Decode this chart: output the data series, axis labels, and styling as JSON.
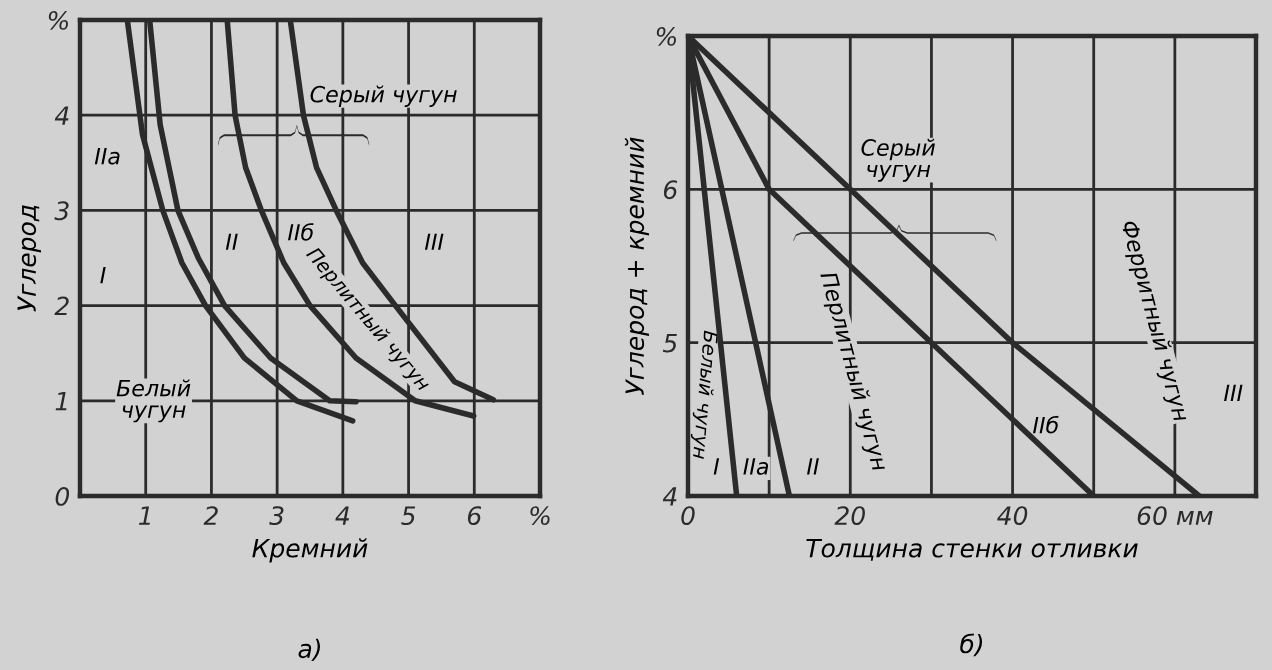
{
  "chart_data": [
    {
      "type": "line",
      "xlabel": "Кремний",
      "ylabel": "Углерод",
      "xlim": [
        0,
        7
      ],
      "ylim": [
        0,
        5
      ],
      "xticks": [
        1,
        2,
        3,
        4,
        5,
        6,
        {
          "value": 7,
          "label": "%"
        }
      ],
      "yticks": [
        0,
        1,
        2,
        3,
        4,
        {
          "value": 5,
          "label": "%"
        }
      ],
      "grid": true,
      "marker": "none",
      "line_style": "solid",
      "series": [
        {
          "color": "#2b2b2b",
          "x": [
            0.72,
            0.95,
            1.26,
            1.55,
            1.91,
            2.5,
            3.3,
            4.15
          ],
          "values": [
            5,
            3.8,
            3,
            2.45,
            2,
            1.45,
            1,
            0.79
          ]
        },
        {
          "color": "#2b2b2b",
          "x": [
            1.06,
            1.22,
            1.49,
            1.8,
            2.2,
            2.9,
            3.8,
            4.2
          ],
          "values": [
            5,
            3.9,
            3,
            2.5,
            2,
            1.45,
            1,
            0.99
          ]
        },
        {
          "color": "#2b2b2b",
          "x": [
            2.24,
            2.36,
            2.52,
            2.76,
            3.1,
            3.5,
            4.2,
            5.1,
            5.99
          ],
          "values": [
            5,
            4,
            3.45,
            3,
            2.45,
            2,
            1.45,
            1,
            0.84
          ]
        },
        {
          "color": "#2b2b2b",
          "x": [
            3.2,
            3.4,
            3.6,
            3.9,
            4.3,
            4.8,
            5.7,
            6.29
          ],
          "values": [
            5,
            4,
            3.45,
            3,
            2.45,
            2,
            1.2,
            1.01
          ]
        }
      ],
      "annotations": [
        "Серый чугун",
        "IIа",
        "I",
        "II",
        "IIб",
        "III",
        "Перлитный чугун",
        "Белый\nчугун",
        "а)"
      ]
    },
    {
      "type": "line",
      "xlabel": "Толщина стенки отливки",
      "ylabel": "Углерод + кремний",
      "xlim": [
        0,
        70
      ],
      "ylim": [
        4,
        7
      ],
      "xticks": [
        0,
        {
          "value": 10,
          "label": null
        },
        20,
        {
          "value": 30,
          "label": null
        },
        40,
        {
          "value": 50,
          "label": null
        },
        {
          "value": 60,
          "label": "60 мм"
        }
      ],
      "yticks": [
        4,
        5,
        6,
        {
          "value": 7,
          "label": "%"
        }
      ],
      "grid": true,
      "marker": "none",
      "line_style": "solid",
      "series": [
        {
          "color": "#2b2b2b",
          "x": [
            0,
            6
          ],
          "values": [
            7,
            4
          ]
        },
        {
          "color": "#2b2b2b",
          "x": [
            0,
            12.5
          ],
          "values": [
            7,
            4
          ]
        },
        {
          "color": "#2b2b2b",
          "x": [
            0,
            10,
            30,
            50
          ],
          "values": [
            7,
            6,
            5,
            4
          ]
        },
        {
          "color": "#2b2b2b",
          "x": [
            0,
            20,
            40,
            63
          ],
          "values": [
            7,
            6,
            5,
            4
          ]
        }
      ],
      "annotations": [
        "Серый\nчугун",
        "Ферритный чугун",
        "Перлитный чугун",
        "Белый чугун",
        "I",
        "IIа",
        "II",
        "IIб",
        "III",
        "б)"
      ]
    }
  ]
}
